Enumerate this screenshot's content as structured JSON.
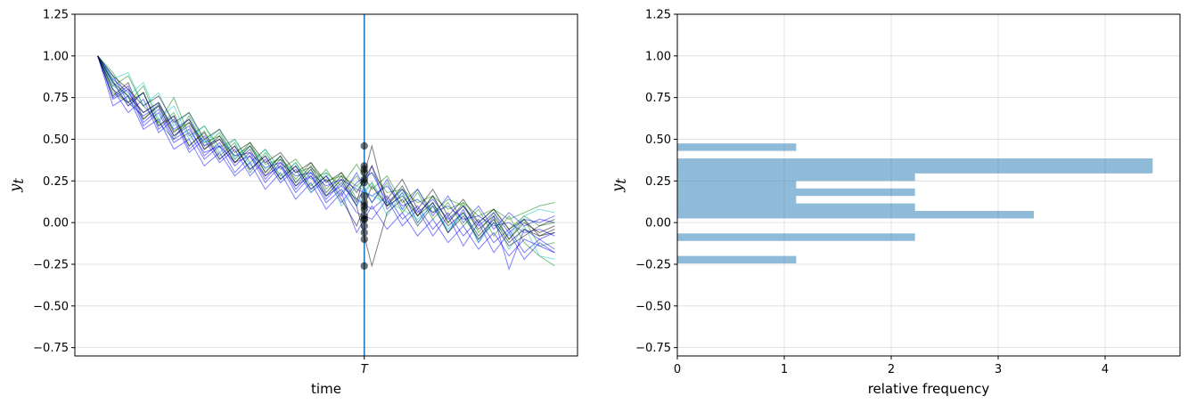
{
  "chart_data": [
    {
      "type": "line",
      "title": "",
      "xlabel": "time",
      "ylabel": "y_t",
      "ylabel_main": "y",
      "ylabel_sub": "t",
      "ylim": [
        -0.8,
        1.25
      ],
      "yticks": [
        -0.75,
        -0.5,
        -0.25,
        0.0,
        0.25,
        0.5,
        0.75,
        1.0,
        1.25
      ],
      "ytick_labels": [
        "−0.75",
        "−0.50",
        "−0.25",
        "0.00",
        "0.25",
        "0.50",
        "0.75",
        "1.00",
        "1.25"
      ],
      "xlim": [
        -1.5,
        31.5
      ],
      "xticks": [
        17.5
      ],
      "xtick_labels": [
        "T"
      ],
      "grid": true,
      "vline_x": 17.5,
      "colors": [
        "#008000",
        "#0000ff",
        "#00bfbf",
        "#000000"
      ],
      "vline_color": "#1f77b4",
      "series": [
        {
          "color": "#008000",
          "values": [
            1.0,
            0.9,
            0.75,
            0.62,
            0.71,
            0.55,
            0.6,
            0.48,
            0.52,
            0.4,
            0.46,
            0.35,
            0.38,
            0.3,
            0.33,
            0.25,
            0.28,
            0.22,
            0.3,
            0.18,
            0.2,
            0.12,
            0.16,
            0.08,
            0.12,
            0.04,
            0.08,
            0.02,
            0.06,
            0.1,
            0.12
          ]
        },
        {
          "color": "#008000",
          "values": [
            1.0,
            0.82,
            0.88,
            0.7,
            0.6,
            0.75,
            0.52,
            0.58,
            0.45,
            0.5,
            0.36,
            0.44,
            0.32,
            0.38,
            0.26,
            0.3,
            0.22,
            0.35,
            0.2,
            0.28,
            0.12,
            0.2,
            0.06,
            0.14,
            0.1,
            0.0,
            0.08,
            -0.04,
            0.04,
            -0.02,
            0.0
          ]
        },
        {
          "color": "#008000",
          "values": [
            1.0,
            0.78,
            0.72,
            0.82,
            0.6,
            0.5,
            0.64,
            0.46,
            0.54,
            0.38,
            0.48,
            0.3,
            0.4,
            0.26,
            0.36,
            0.2,
            0.3,
            0.14,
            0.24,
            0.1,
            0.2,
            0.04,
            0.16,
            0.0,
            0.12,
            -0.06,
            0.06,
            -0.1,
            0.02,
            -0.14,
            -0.12
          ]
        },
        {
          "color": "#008000",
          "values": [
            1.0,
            0.85,
            0.7,
            0.78,
            0.58,
            0.66,
            0.46,
            0.55,
            0.4,
            0.48,
            0.3,
            0.42,
            0.28,
            0.36,
            0.22,
            0.32,
            0.18,
            0.28,
            0.12,
            0.24,
            0.06,
            0.18,
            0.02,
            0.12,
            -0.02,
            0.08,
            -0.08,
            0.04,
            -0.12,
            -0.2,
            -0.26
          ]
        },
        {
          "color": "#0000ff",
          "values": [
            1.0,
            0.86,
            0.78,
            0.66,
            0.72,
            0.56,
            0.62,
            0.46,
            0.5,
            0.4,
            0.42,
            0.33,
            0.36,
            0.28,
            0.3,
            0.22,
            0.26,
            0.2,
            0.16,
            0.22,
            0.1,
            0.14,
            0.06,
            0.1,
            0.02,
            0.04,
            -0.02,
            0.0,
            -0.06,
            -0.04,
            -0.08
          ]
        },
        {
          "color": "#0000ff",
          "values": [
            1.0,
            0.75,
            0.82,
            0.6,
            0.68,
            0.5,
            0.56,
            0.42,
            0.46,
            0.36,
            0.4,
            0.28,
            0.34,
            0.22,
            0.28,
            0.16,
            0.22,
            0.14,
            0.08,
            0.16,
            0.02,
            0.1,
            -0.04,
            0.06,
            -0.08,
            0.02,
            -0.12,
            -0.04,
            -0.18,
            -0.1,
            -0.16
          ]
        },
        {
          "color": "#0000ff",
          "values": [
            1.0,
            0.8,
            0.66,
            0.74,
            0.54,
            0.62,
            0.42,
            0.5,
            0.36,
            0.44,
            0.28,
            0.38,
            0.24,
            0.32,
            0.18,
            0.26,
            0.12,
            0.24,
            0.3,
            0.12,
            0.2,
            0.06,
            0.14,
            0.02,
            0.1,
            -0.02,
            0.06,
            -0.06,
            0.02,
            0.0,
            0.04
          ]
        },
        {
          "color": "#0000ff",
          "values": [
            1.0,
            0.88,
            0.72,
            0.64,
            0.7,
            0.52,
            0.58,
            0.4,
            0.48,
            0.34,
            0.42,
            0.26,
            0.36,
            0.2,
            0.3,
            0.14,
            0.24,
            0.1,
            0.34,
            0.08,
            0.18,
            0.0,
            0.12,
            -0.06,
            0.08,
            -0.12,
            0.04,
            -0.28,
            -0.04,
            -0.1,
            -0.06
          ]
        },
        {
          "color": "#0000ff",
          "values": [
            1.0,
            0.74,
            0.8,
            0.58,
            0.66,
            0.48,
            0.54,
            0.38,
            0.46,
            0.3,
            0.4,
            0.24,
            0.34,
            0.18,
            0.28,
            0.12,
            0.2,
            0.06,
            0.02,
            0.14,
            -0.02,
            0.08,
            -0.08,
            0.04,
            -0.14,
            0.0,
            -0.18,
            -0.06,
            -0.22,
            -0.12,
            -0.18
          ]
        },
        {
          "color": "#0000ff",
          "values": [
            1.0,
            0.84,
            0.7,
            0.78,
            0.56,
            0.64,
            0.44,
            0.52,
            0.38,
            0.46,
            0.32,
            0.4,
            0.26,
            0.34,
            0.2,
            0.28,
            0.16,
            0.3,
            0.12,
            0.26,
            0.08,
            0.2,
            0.04,
            0.16,
            0.0,
            0.1,
            -0.04,
            0.06,
            -0.02,
            0.02,
            0.0
          ]
        },
        {
          "color": "#0000ff",
          "values": [
            1.0,
            0.7,
            0.76,
            0.56,
            0.62,
            0.44,
            0.5,
            0.34,
            0.42,
            0.28,
            0.36,
            0.2,
            0.3,
            0.14,
            0.24,
            0.08,
            0.18,
            -0.06,
            0.1,
            -0.04,
            0.06,
            -0.08,
            0.02,
            -0.12,
            -0.02,
            -0.16,
            -0.06,
            -0.2,
            -0.1,
            -0.14,
            -0.18
          ]
        },
        {
          "color": "#00bfbf",
          "values": [
            1.0,
            0.82,
            0.76,
            0.84,
            0.62,
            0.7,
            0.5,
            0.58,
            0.42,
            0.5,
            0.34,
            0.44,
            0.26,
            0.36,
            0.18,
            0.3,
            0.1,
            0.22,
            0.16,
            0.12,
            0.08,
            0.02,
            0.1,
            -0.04,
            0.06,
            -0.1,
            0.02,
            -0.16,
            -0.02,
            -0.2,
            -0.22
          ]
        },
        {
          "color": "#00bfbf",
          "values": [
            1.0,
            0.86,
            0.9,
            0.7,
            0.78,
            0.58,
            0.66,
            0.48,
            0.56,
            0.38,
            0.46,
            0.32,
            0.4,
            0.24,
            0.32,
            0.16,
            0.26,
            0.1,
            0.24,
            0.04,
            0.18,
            0.0,
            0.12,
            -0.06,
            0.06,
            -0.12,
            0.0,
            -0.08,
            0.04,
            0.08,
            0.06
          ]
        },
        {
          "color": "#000000",
          "values": [
            1.0,
            0.88,
            0.8,
            0.7,
            0.76,
            0.6,
            0.66,
            0.5,
            0.56,
            0.42,
            0.48,
            0.36,
            0.42,
            0.3,
            0.36,
            0.24,
            0.3,
            0.18,
            0.34,
            0.14,
            0.26,
            0.08,
            0.2,
            0.04,
            0.14,
            0.0,
            0.08,
            -0.04,
            0.02,
            -0.08,
            -0.04
          ]
        },
        {
          "color": "#000000",
          "values": [
            1.0,
            0.76,
            0.84,
            0.62,
            0.7,
            0.52,
            0.6,
            0.44,
            0.52,
            0.36,
            0.46,
            0.3,
            0.4,
            0.24,
            0.34,
            0.18,
            0.28,
            0.12,
            0.46,
            0.1,
            0.22,
            0.04,
            0.16,
            0.0,
            0.1,
            -0.04,
            0.04,
            -0.1,
            0.0,
            -0.06,
            -0.02
          ]
        },
        {
          "color": "#000000",
          "values": [
            1.0,
            0.8,
            0.72,
            0.78,
            0.58,
            0.64,
            0.46,
            0.54,
            0.38,
            0.46,
            0.32,
            0.4,
            0.26,
            0.34,
            0.2,
            0.28,
            0.14,
            -0.02,
            0.22,
            0.1,
            0.16,
            0.04,
            0.12,
            -0.02,
            0.06,
            -0.08,
            0.02,
            -0.12,
            -0.04,
            -0.08,
            -0.06
          ]
        },
        {
          "color": "#000000",
          "values": [
            1.0,
            0.84,
            0.76,
            0.66,
            0.72,
            0.54,
            0.62,
            0.44,
            0.5,
            0.36,
            0.44,
            0.28,
            0.38,
            0.22,
            0.32,
            0.16,
            0.26,
            0.1,
            -0.26,
            0.06,
            0.14,
            -0.02,
            0.1,
            -0.06,
            0.04,
            -0.1,
            0.0,
            -0.14,
            -0.08,
            -0.02,
            0.02
          ]
        }
      ],
      "points_at_T": [
        0.46,
        0.34,
        0.32,
        0.3,
        0.26,
        0.24,
        0.16,
        0.12,
        0.1,
        0.08,
        0.04,
        0.02,
        0.02,
        -0.02,
        -0.06,
        -0.1,
        -0.26
      ]
    },
    {
      "type": "bar",
      "orientation": "horizontal",
      "title": "",
      "xlabel": "relative frequency",
      "ylabel": "y_t",
      "ylabel_main": "y",
      "ylabel_sub": "t",
      "ylim": [
        -0.8,
        1.25
      ],
      "yticks": [
        -0.75,
        -0.5,
        -0.25,
        0.0,
        0.25,
        0.5,
        0.75,
        1.0,
        1.25
      ],
      "ytick_labels": [
        "−0.75",
        "−0.50",
        "−0.25",
        "0.00",
        "0.25",
        "0.50",
        "0.75",
        "1.00",
        "1.25"
      ],
      "xlim": [
        0,
        4.7
      ],
      "xticks": [
        0,
        1,
        2,
        3,
        4
      ],
      "xtick_labels": [
        "0",
        "1",
        "2",
        "3",
        "4"
      ],
      "grid": true,
      "bar_color": "#1f77b4",
      "bar_alpha": 0.5,
      "bins": [
        {
          "y0": -0.245,
          "y1": -0.2,
          "value": 1.1111
        },
        {
          "y0": -0.11,
          "y1": -0.065,
          "value": 2.2222
        },
        {
          "y0": 0.025,
          "y1": 0.07,
          "value": 3.3333
        },
        {
          "y0": 0.07,
          "y1": 0.115,
          "value": 2.2222
        },
        {
          "y0": 0.115,
          "y1": 0.16,
          "value": 1.1111
        },
        {
          "y0": 0.16,
          "y1": 0.205,
          "value": 2.2222
        },
        {
          "y0": 0.205,
          "y1": 0.25,
          "value": 1.1111
        },
        {
          "y0": 0.25,
          "y1": 0.295,
          "value": 2.2222
        },
        {
          "y0": 0.295,
          "y1": 0.34,
          "value": 4.4444
        },
        {
          "y0": 0.34,
          "y1": 0.385,
          "value": 4.4444
        },
        {
          "y0": 0.43,
          "y1": 0.475,
          "value": 1.1111
        }
      ]
    }
  ]
}
